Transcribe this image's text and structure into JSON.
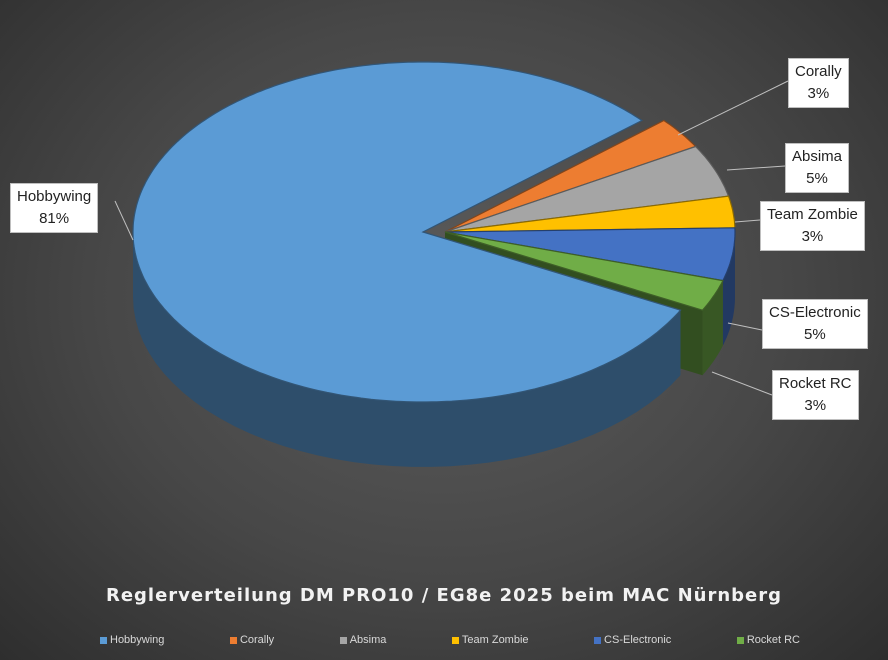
{
  "chart_data": {
    "type": "pie",
    "style": "3d-exploded",
    "title": "Reglerverteilung DM PRO10 / EG8e 2025 beim MAC Nürnberg",
    "legend_position": "bottom",
    "slices": [
      {
        "name": "Hobbywing",
        "value": 81,
        "label": "81%",
        "color": "#5b9bd5"
      },
      {
        "name": "Corally",
        "value": 3,
        "label": "3%",
        "color": "#ed7d31"
      },
      {
        "name": "Absima",
        "value": 5,
        "label": "5%",
        "color": "#a5a5a5"
      },
      {
        "name": "Team Zombie",
        "value": 3,
        "label": "3%",
        "color": "#ffc000"
      },
      {
        "name": "CS-Electronic",
        "value": 5,
        "label": "5%",
        "color": "#4472c4"
      },
      {
        "name": "Rocket RC",
        "value": 3,
        "label": "3%",
        "color": "#70ad47"
      }
    ]
  }
}
